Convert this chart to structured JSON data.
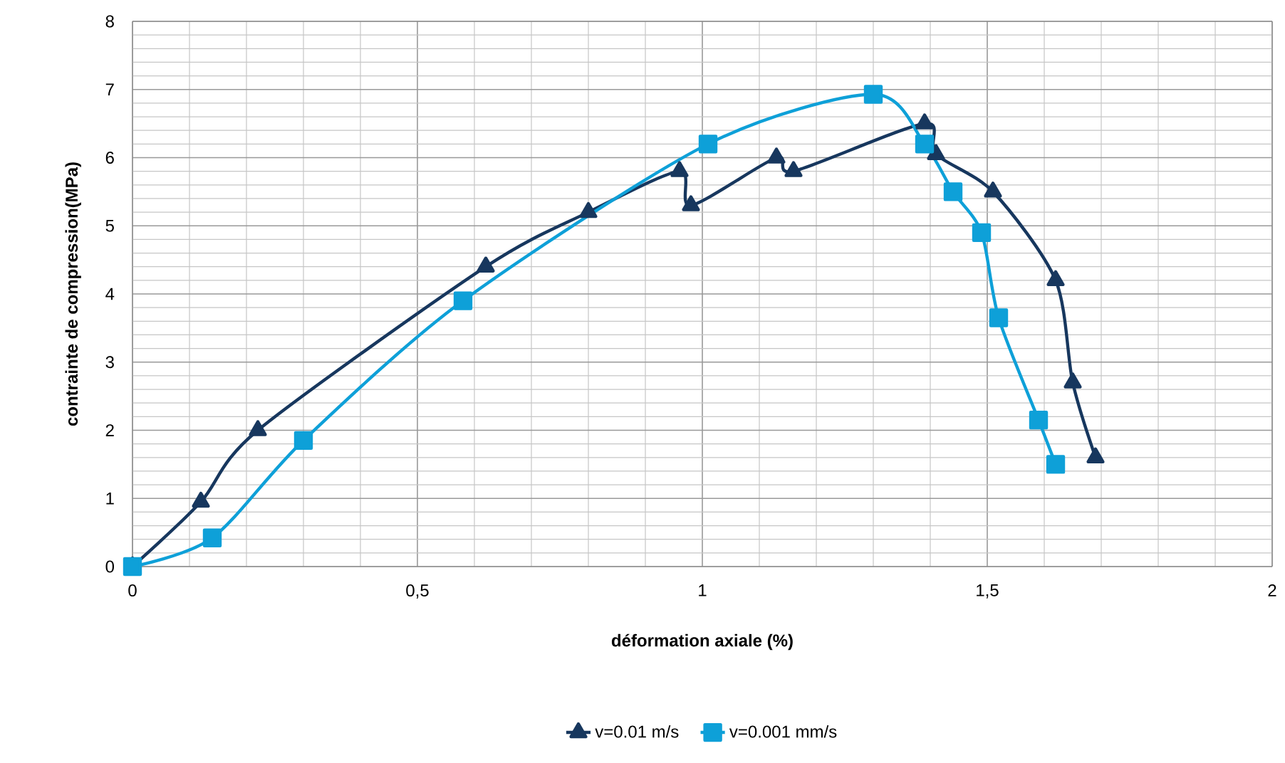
{
  "chart_data": {
    "type": "line",
    "xlabel": "déformation axiale (%)",
    "ylabel": "contrainte de compression(MPa)",
    "xlim": [
      0,
      2
    ],
    "ylim": [
      0,
      8
    ],
    "xticks": [
      {
        "value": 0,
        "label": "0"
      },
      {
        "value": 0.5,
        "label": "0,5"
      },
      {
        "value": 1,
        "label": "1"
      },
      {
        "value": 1.5,
        "label": "1,5"
      },
      {
        "value": 2,
        "label": "2"
      }
    ],
    "yticks": [
      0,
      1,
      2,
      3,
      4,
      5,
      6,
      7,
      8
    ],
    "grid": true,
    "legend": "bottom",
    "line_style": "solid",
    "series": [
      {
        "name": "v=0.01 m/s",
        "color": "#17375e",
        "marker": "triangle",
        "x": [
          0,
          0.12,
          0.22,
          0.62,
          0.8,
          0.96,
          0.98,
          1.13,
          1.16,
          1.39,
          1.41,
          1.51,
          1.62,
          1.65,
          1.69
        ],
        "values": [
          0,
          0.95,
          2.0,
          4.4,
          5.2,
          5.8,
          5.3,
          6.0,
          5.8,
          6.5,
          6.05,
          5.5,
          4.2,
          2.7,
          1.6
        ]
      },
      {
        "name": "v=0.001 mm/s",
        "color": "#0ea0d8",
        "marker": "square",
        "x": [
          0,
          0.14,
          0.3,
          0.58,
          1.01,
          1.3,
          1.39,
          1.44,
          1.49,
          1.52,
          1.59,
          1.62
        ],
        "values": [
          0,
          0.42,
          1.85,
          3.9,
          6.2,
          6.93,
          6.2,
          5.5,
          4.9,
          3.65,
          2.15,
          1.5
        ]
      }
    ]
  }
}
